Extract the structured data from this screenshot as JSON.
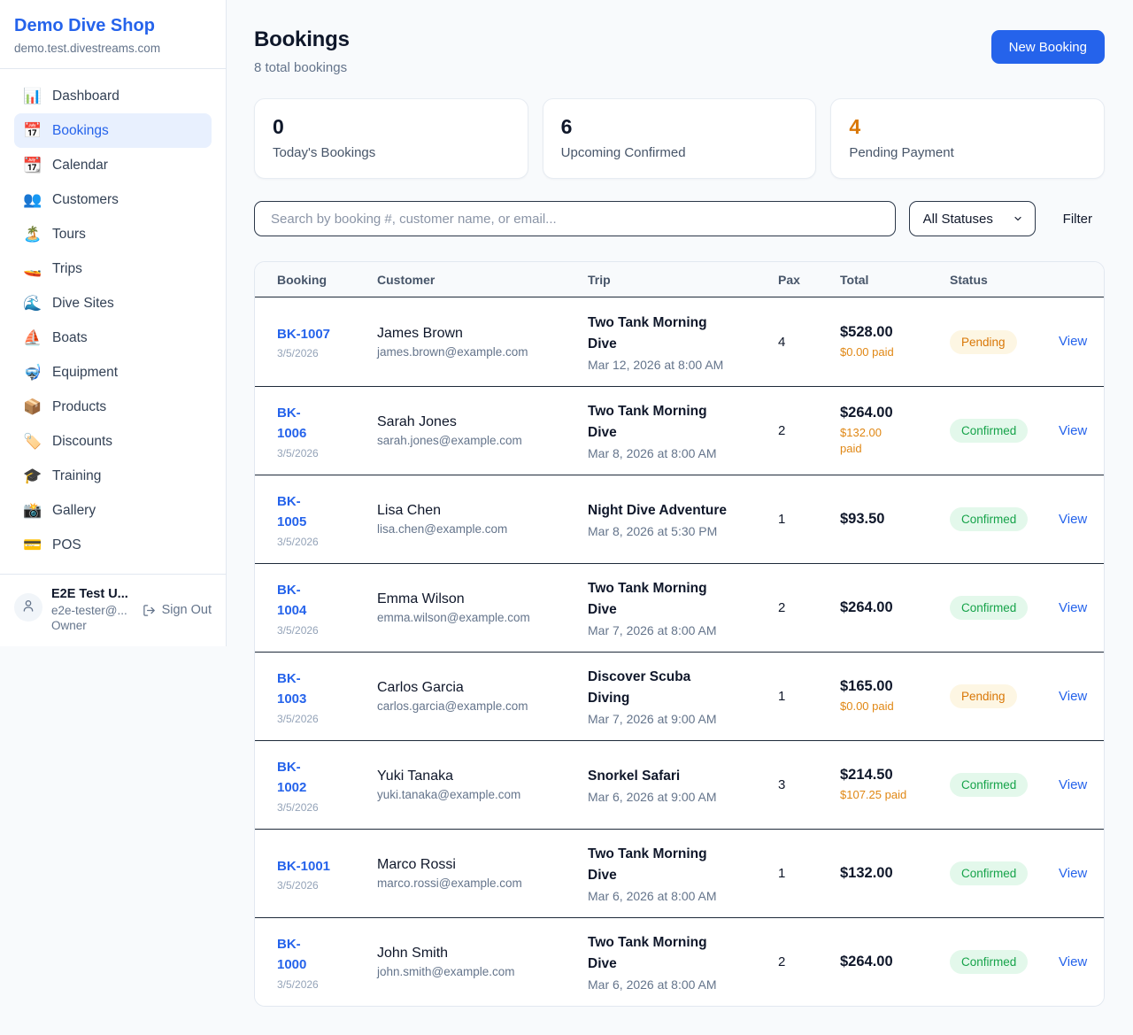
{
  "sidebar": {
    "brand": {
      "name": "Demo Dive Shop",
      "domain": "demo.test.divestreams.com"
    },
    "items": [
      {
        "label": "Dashboard",
        "icon": "bar-chart-icon",
        "emoji": "📊",
        "active": false
      },
      {
        "label": "Bookings",
        "icon": "calendar-icon",
        "emoji": "📅",
        "active": true
      },
      {
        "label": "Calendar",
        "icon": "tear-off-calendar-icon",
        "emoji": "📆",
        "active": false
      },
      {
        "label": "Customers",
        "icon": "people-icon",
        "emoji": "👥",
        "active": false
      },
      {
        "label": "Tours",
        "icon": "island-icon",
        "emoji": "🏝️",
        "active": false
      },
      {
        "label": "Trips",
        "icon": "speedboat-icon",
        "emoji": "🚤",
        "active": false
      },
      {
        "label": "Dive Sites",
        "icon": "wave-icon",
        "emoji": "🌊",
        "active": false
      },
      {
        "label": "Boats",
        "icon": "sailboat-icon",
        "emoji": "⛵",
        "active": false
      },
      {
        "label": "Equipment",
        "icon": "diving-mask-icon",
        "emoji": "🤿",
        "active": false
      },
      {
        "label": "Products",
        "icon": "package-icon",
        "emoji": "📦",
        "active": false
      },
      {
        "label": "Discounts",
        "icon": "label-icon",
        "emoji": "🏷️",
        "active": false
      },
      {
        "label": "Training",
        "icon": "graduation-cap-icon",
        "emoji": "🎓",
        "active": false
      },
      {
        "label": "Gallery",
        "icon": "camera-flash-icon",
        "emoji": "📸",
        "active": false
      },
      {
        "label": "POS",
        "icon": "credit-card-icon",
        "emoji": "💳",
        "active": false
      }
    ],
    "user": {
      "name": "E2E Test U...",
      "email": "e2e-tester@...",
      "role": "Owner",
      "sign_out_label": "Sign Out"
    }
  },
  "header": {
    "title": "Bookings",
    "subtitle": "8 total bookings",
    "new_booking_label": "New Booking"
  },
  "stats": [
    {
      "value": "0",
      "label": "Today's Bookings",
      "color": "#0f172a"
    },
    {
      "value": "6",
      "label": "Upcoming Confirmed",
      "color": "#0f172a"
    },
    {
      "value": "4",
      "label": "Pending Payment",
      "color": "#d97706"
    }
  ],
  "filters": {
    "search_placeholder": "Search by booking #, customer name, or email...",
    "status_selected": "All Statuses",
    "filter_label": "Filter"
  },
  "table": {
    "columns": [
      "Booking",
      "Customer",
      "Trip",
      "Pax",
      "Total",
      "Status"
    ],
    "view_label": "View",
    "status_styles": {
      "Pending": {
        "bg": "#fdf6e3",
        "fg": "#d97706"
      },
      "Confirmed": {
        "bg": "#e3f8eb",
        "fg": "#16a34a"
      }
    },
    "rows": [
      {
        "id_lines": [
          "BK-1007"
        ],
        "date": "3/5/2026",
        "customer": "James Brown",
        "email": "james.brown@example.com",
        "trip_lines": [
          "Two Tank Morning",
          "Dive"
        ],
        "trip_time": "Mar 12, 2026 at 8:00 AM",
        "pax": "4",
        "total": "$528.00",
        "paid_lines": [
          "$0.00 paid"
        ],
        "status": "Pending"
      },
      {
        "id_lines": [
          "BK-",
          "1006"
        ],
        "date": "3/5/2026",
        "customer": "Sarah Jones",
        "email": "sarah.jones@example.com",
        "trip_lines": [
          "Two Tank Morning",
          "Dive"
        ],
        "trip_time": "Mar 8, 2026 at 8:00 AM",
        "pax": "2",
        "total": "$264.00",
        "paid_lines": [
          "$132.00",
          "paid"
        ],
        "status": "Confirmed"
      },
      {
        "id_lines": [
          "BK-",
          "1005"
        ],
        "date": "3/5/2026",
        "customer": "Lisa Chen",
        "email": "lisa.chen@example.com",
        "trip_lines": [
          "Night Dive Adventure"
        ],
        "trip_time": "Mar 8, 2026 at 5:30 PM",
        "pax": "1",
        "total": "$93.50",
        "paid_lines": null,
        "status": "Confirmed"
      },
      {
        "id_lines": [
          "BK-",
          "1004"
        ],
        "date": "3/5/2026",
        "customer": "Emma Wilson",
        "email": "emma.wilson@example.com",
        "trip_lines": [
          "Two Tank Morning",
          "Dive"
        ],
        "trip_time": "Mar 7, 2026 at 8:00 AM",
        "pax": "2",
        "total": "$264.00",
        "paid_lines": null,
        "status": "Confirmed"
      },
      {
        "id_lines": [
          "BK-",
          "1003"
        ],
        "date": "3/5/2026",
        "customer": "Carlos Garcia",
        "email": "carlos.garcia@example.com",
        "trip_lines": [
          "Discover Scuba",
          "Diving"
        ],
        "trip_time": "Mar 7, 2026 at 9:00 AM",
        "pax": "1",
        "total": "$165.00",
        "paid_lines": [
          "$0.00 paid"
        ],
        "status": "Pending"
      },
      {
        "id_lines": [
          "BK-",
          "1002"
        ],
        "date": "3/5/2026",
        "customer": "Yuki Tanaka",
        "email": "yuki.tanaka@example.com",
        "trip_lines": [
          "Snorkel Safari"
        ],
        "trip_time": "Mar 6, 2026 at 9:00 AM",
        "pax": "3",
        "total": "$214.50",
        "paid_lines": [
          "$107.25 paid"
        ],
        "status": "Confirmed"
      },
      {
        "id_lines": [
          "BK-1001"
        ],
        "date": "3/5/2026",
        "customer": "Marco Rossi",
        "email": "marco.rossi@example.com",
        "trip_lines": [
          "Two Tank Morning",
          "Dive"
        ],
        "trip_time": "Mar 6, 2026 at 8:00 AM",
        "pax": "1",
        "total": "$132.00",
        "paid_lines": null,
        "status": "Confirmed"
      },
      {
        "id_lines": [
          "BK-",
          "1000"
        ],
        "date": "3/5/2026",
        "customer": "John Smith",
        "email": "john.smith@example.com",
        "trip_lines": [
          "Two Tank Morning",
          "Dive"
        ],
        "trip_time": "Mar 6, 2026 at 8:00 AM",
        "pax": "2",
        "total": "$264.00",
        "paid_lines": null,
        "status": "Confirmed"
      }
    ]
  }
}
